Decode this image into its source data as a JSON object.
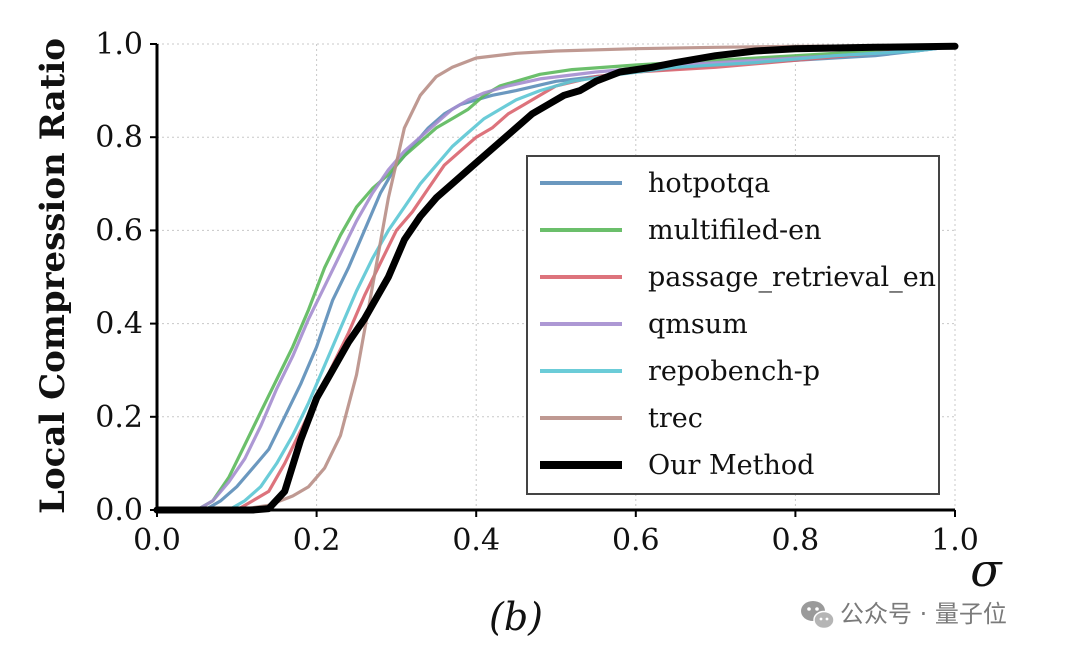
{
  "chart_data": {
    "type": "line",
    "title": "",
    "xlabel": "σ",
    "ylabel": "Local Compression Ratio",
    "xlim": [
      0,
      1
    ],
    "ylim": [
      0,
      1
    ],
    "xticks": [
      "0.0",
      "0.2",
      "0.4",
      "0.6",
      "0.8",
      "1.0"
    ],
    "yticks": [
      "0.0",
      "0.2",
      "0.4",
      "0.6",
      "0.8",
      "1.0"
    ],
    "grid": true,
    "legend_position": "right",
    "series": [
      {
        "name": "hotpotqa",
        "color": "#5b8db8",
        "points": [
          [
            0,
            0
          ],
          [
            0.06,
            0
          ],
          [
            0.08,
            0.02
          ],
          [
            0.1,
            0.05
          ],
          [
            0.12,
            0.09
          ],
          [
            0.14,
            0.13
          ],
          [
            0.16,
            0.2
          ],
          [
            0.18,
            0.27
          ],
          [
            0.2,
            0.35
          ],
          [
            0.22,
            0.45
          ],
          [
            0.24,
            0.52
          ],
          [
            0.26,
            0.6
          ],
          [
            0.28,
            0.68
          ],
          [
            0.3,
            0.74
          ],
          [
            0.32,
            0.78
          ],
          [
            0.34,
            0.82
          ],
          [
            0.36,
            0.85
          ],
          [
            0.38,
            0.87
          ],
          [
            0.4,
            0.88
          ],
          [
            0.42,
            0.89
          ],
          [
            0.45,
            0.9
          ],
          [
            0.5,
            0.92
          ],
          [
            0.55,
            0.93
          ],
          [
            0.6,
            0.94
          ],
          [
            0.7,
            0.955
          ],
          [
            0.8,
            0.965
          ],
          [
            0.9,
            0.975
          ],
          [
            0.95,
            0.985
          ],
          [
            1.0,
            0.995
          ]
        ]
      },
      {
        "name": "multifiled-en",
        "color": "#5bb85b",
        "points": [
          [
            0,
            0
          ],
          [
            0.05,
            0
          ],
          [
            0.07,
            0.02
          ],
          [
            0.09,
            0.07
          ],
          [
            0.11,
            0.14
          ],
          [
            0.13,
            0.21
          ],
          [
            0.15,
            0.28
          ],
          [
            0.17,
            0.35
          ],
          [
            0.19,
            0.43
          ],
          [
            0.21,
            0.52
          ],
          [
            0.23,
            0.59
          ],
          [
            0.25,
            0.65
          ],
          [
            0.27,
            0.69
          ],
          [
            0.29,
            0.72
          ],
          [
            0.31,
            0.76
          ],
          [
            0.33,
            0.79
          ],
          [
            0.35,
            0.82
          ],
          [
            0.37,
            0.84
          ],
          [
            0.39,
            0.86
          ],
          [
            0.41,
            0.89
          ],
          [
            0.43,
            0.91
          ],
          [
            0.45,
            0.92
          ],
          [
            0.48,
            0.935
          ],
          [
            0.52,
            0.945
          ],
          [
            0.6,
            0.955
          ],
          [
            0.7,
            0.965
          ],
          [
            0.8,
            0.975
          ],
          [
            0.9,
            0.985
          ],
          [
            1.0,
            0.995
          ]
        ]
      },
      {
        "name": "passage_retrieval_en",
        "color": "#d9646e",
        "points": [
          [
            0,
            0
          ],
          [
            0.1,
            0
          ],
          [
            0.12,
            0.02
          ],
          [
            0.14,
            0.04
          ],
          [
            0.16,
            0.1
          ],
          [
            0.18,
            0.17
          ],
          [
            0.2,
            0.24
          ],
          [
            0.22,
            0.31
          ],
          [
            0.24,
            0.38
          ],
          [
            0.26,
            0.46
          ],
          [
            0.28,
            0.53
          ],
          [
            0.3,
            0.6
          ],
          [
            0.32,
            0.64
          ],
          [
            0.34,
            0.69
          ],
          [
            0.36,
            0.74
          ],
          [
            0.38,
            0.77
          ],
          [
            0.4,
            0.8
          ],
          [
            0.42,
            0.82
          ],
          [
            0.44,
            0.85
          ],
          [
            0.46,
            0.87
          ],
          [
            0.48,
            0.89
          ],
          [
            0.5,
            0.91
          ],
          [
            0.55,
            0.93
          ],
          [
            0.6,
            0.94
          ],
          [
            0.7,
            0.95
          ],
          [
            0.8,
            0.965
          ],
          [
            0.9,
            0.98
          ],
          [
            1.0,
            0.995
          ]
        ]
      },
      {
        "name": "qmsum",
        "color": "#a48dcf",
        "points": [
          [
            0,
            0
          ],
          [
            0.05,
            0
          ],
          [
            0.07,
            0.02
          ],
          [
            0.09,
            0.06
          ],
          [
            0.11,
            0.11
          ],
          [
            0.13,
            0.18
          ],
          [
            0.15,
            0.26
          ],
          [
            0.17,
            0.33
          ],
          [
            0.19,
            0.41
          ],
          [
            0.21,
            0.48
          ],
          [
            0.23,
            0.55
          ],
          [
            0.25,
            0.62
          ],
          [
            0.27,
            0.68
          ],
          [
            0.29,
            0.73
          ],
          [
            0.31,
            0.77
          ],
          [
            0.33,
            0.8
          ],
          [
            0.35,
            0.83
          ],
          [
            0.37,
            0.86
          ],
          [
            0.39,
            0.88
          ],
          [
            0.41,
            0.895
          ],
          [
            0.44,
            0.91
          ],
          [
            0.48,
            0.925
          ],
          [
            0.55,
            0.94
          ],
          [
            0.65,
            0.955
          ],
          [
            0.75,
            0.965
          ],
          [
            0.85,
            0.975
          ],
          [
            0.95,
            0.985
          ],
          [
            1.0,
            0.995
          ]
        ]
      },
      {
        "name": "repobench-p",
        "color": "#5bc7d4",
        "points": [
          [
            0,
            0
          ],
          [
            0.09,
            0
          ],
          [
            0.11,
            0.02
          ],
          [
            0.13,
            0.05
          ],
          [
            0.15,
            0.1
          ],
          [
            0.17,
            0.16
          ],
          [
            0.19,
            0.23
          ],
          [
            0.21,
            0.31
          ],
          [
            0.23,
            0.39
          ],
          [
            0.25,
            0.47
          ],
          [
            0.27,
            0.54
          ],
          [
            0.29,
            0.6
          ],
          [
            0.31,
            0.65
          ],
          [
            0.33,
            0.7
          ],
          [
            0.35,
            0.74
          ],
          [
            0.37,
            0.78
          ],
          [
            0.39,
            0.81
          ],
          [
            0.41,
            0.84
          ],
          [
            0.43,
            0.86
          ],
          [
            0.45,
            0.88
          ],
          [
            0.48,
            0.9
          ],
          [
            0.52,
            0.92
          ],
          [
            0.58,
            0.935
          ],
          [
            0.65,
            0.95
          ],
          [
            0.75,
            0.96
          ],
          [
            0.85,
            0.975
          ],
          [
            0.95,
            0.985
          ],
          [
            1.0,
            0.995
          ]
        ]
      },
      {
        "name": "trec",
        "color": "#b88e86",
        "points": [
          [
            0,
            0
          ],
          [
            0.1,
            0
          ],
          [
            0.14,
            0.01
          ],
          [
            0.17,
            0.03
          ],
          [
            0.19,
            0.05
          ],
          [
            0.21,
            0.09
          ],
          [
            0.23,
            0.16
          ],
          [
            0.25,
            0.29
          ],
          [
            0.27,
            0.48
          ],
          [
            0.29,
            0.67
          ],
          [
            0.31,
            0.82
          ],
          [
            0.33,
            0.89
          ],
          [
            0.35,
            0.93
          ],
          [
            0.37,
            0.95
          ],
          [
            0.4,
            0.97
          ],
          [
            0.45,
            0.98
          ],
          [
            0.5,
            0.985
          ],
          [
            0.6,
            0.99
          ],
          [
            0.7,
            0.993
          ],
          [
            0.8,
            0.995
          ],
          [
            1.0,
            0.997
          ]
        ]
      },
      {
        "name": "Our Method",
        "color": "#000000",
        "points": [
          [
            0,
            0
          ],
          [
            0.12,
            0
          ],
          [
            0.14,
            0.003
          ],
          [
            0.16,
            0.04
          ],
          [
            0.18,
            0.15
          ],
          [
            0.2,
            0.24
          ],
          [
            0.22,
            0.3
          ],
          [
            0.24,
            0.36
          ],
          [
            0.26,
            0.41
          ],
          [
            0.28,
            0.47
          ],
          [
            0.29,
            0.5
          ],
          [
            0.31,
            0.58
          ],
          [
            0.33,
            0.63
          ],
          [
            0.35,
            0.67
          ],
          [
            0.37,
            0.7
          ],
          [
            0.39,
            0.73
          ],
          [
            0.41,
            0.76
          ],
          [
            0.43,
            0.79
          ],
          [
            0.45,
            0.82
          ],
          [
            0.47,
            0.85
          ],
          [
            0.49,
            0.87
          ],
          [
            0.51,
            0.89
          ],
          [
            0.53,
            0.9
          ],
          [
            0.55,
            0.92
          ],
          [
            0.58,
            0.94
          ],
          [
            0.62,
            0.95
          ],
          [
            0.65,
            0.96
          ],
          [
            0.7,
            0.975
          ],
          [
            0.75,
            0.985
          ],
          [
            0.8,
            0.99
          ],
          [
            0.9,
            0.993
          ],
          [
            1.0,
            0.995
          ]
        ]
      }
    ]
  },
  "caption": "(b)",
  "watermark": {
    "text": "公众号 · 量子位",
    "icon": "wechat-icon"
  }
}
